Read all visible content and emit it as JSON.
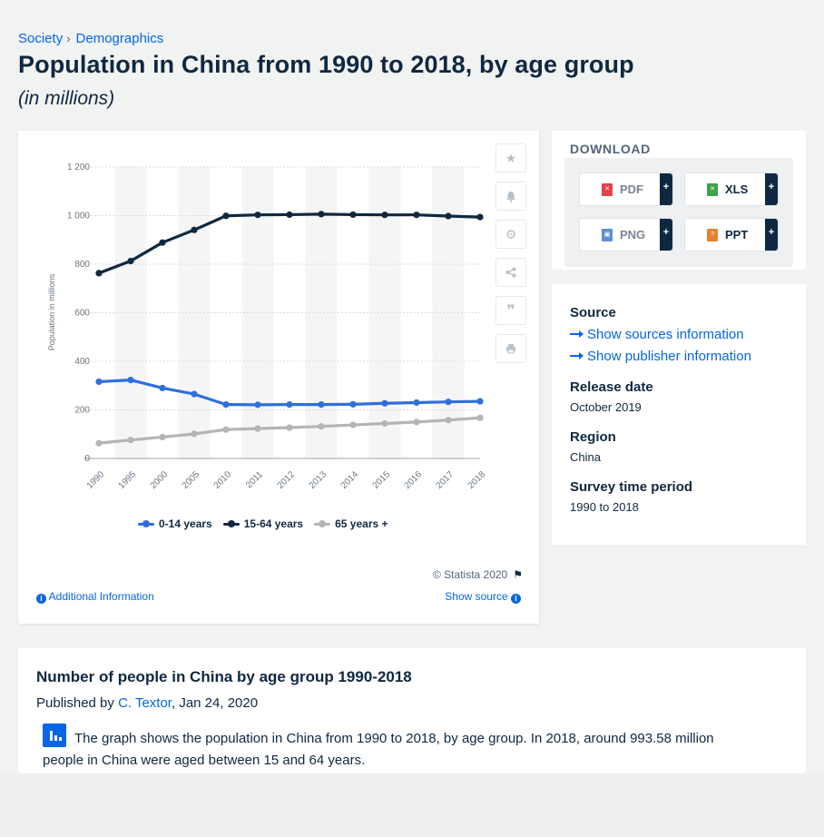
{
  "breadcrumb": {
    "item1": "Society",
    "item2": "Demographics",
    "separator": "›"
  },
  "title": "Population in China from 1990 to 2018, by age group",
  "subtitle": "(in millions)",
  "toolbar_icons": [
    "star-icon",
    "bell-icon",
    "gear-icon",
    "share-icon",
    "quote-icon",
    "print-icon"
  ],
  "chart_data": {
    "type": "line",
    "categories": [
      "1990",
      "1995",
      "2000",
      "2005",
      "2010",
      "2011",
      "2012",
      "2013",
      "2014",
      "2015",
      "2016",
      "2017",
      "2018"
    ],
    "series": [
      {
        "name": "0-14 years",
        "color": "#2f6fdc",
        "values": [
          316,
          323,
          290,
          265,
          222,
          221,
          222,
          222,
          223,
          227,
          230,
          233,
          235
        ]
      },
      {
        "name": "15-64 years",
        "color": "#0f2841",
        "values": [
          763,
          813,
          889,
          941,
          999,
          1003,
          1004,
          1006,
          1004,
          1003,
          1003,
          998,
          994
        ]
      },
      {
        "name": "65 years +",
        "color": "#b4b4b4",
        "values": [
          63,
          76,
          88,
          101,
          119,
          123,
          127,
          132,
          138,
          144,
          150,
          158,
          167
        ]
      }
    ],
    "ylabel": "Population in millions",
    "ylim": [
      0,
      1200
    ],
    "yticks": [
      0,
      200,
      400,
      600,
      800,
      1000,
      1200
    ],
    "ytick_labels": [
      "0",
      "200",
      "400",
      "600",
      "800",
      "1 000",
      "1 200"
    ],
    "grid": true,
    "legend_position": "bottom"
  },
  "chart_footer": {
    "copyright": "© Statista 2020",
    "additional_info": "Additional Information",
    "show_source": "Show source"
  },
  "download": {
    "title": "DOWNLOAD",
    "buttons": [
      {
        "label": "PDF",
        "color": "#e0444c"
      },
      {
        "label": "XLS",
        "color": "#3ea24b"
      },
      {
        "label": "PNG",
        "color": "#5b8fd8"
      },
      {
        "label": "PPT",
        "color": "#e6822e"
      }
    ],
    "plus": "+"
  },
  "info": {
    "source_label": "Source",
    "show_sources": "Show sources information",
    "show_publisher": "Show publisher information",
    "release_label": "Release date",
    "release_value": "October 2019",
    "region_label": "Region",
    "region_value": "China",
    "period_label": "Survey time period",
    "period_value": "1990 to 2018"
  },
  "description": {
    "title": "Number of people in China by age group 1990-2018",
    "published_prefix": "Published by ",
    "author": "C. Textor",
    "published_date": ", Jan 24, 2020",
    "text": "The graph shows the population in China from 1990 to 2018, by age group. In 2018, around 993.58 million people in China were aged between 15 and 64 years."
  }
}
